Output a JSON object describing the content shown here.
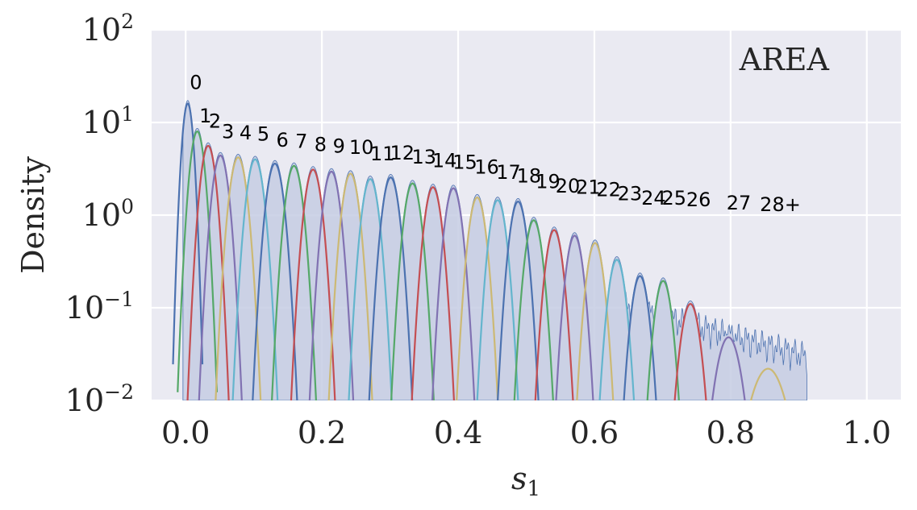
{
  "chart_data": {
    "type": "line",
    "title": "",
    "xlabel_base": "s",
    "xlabel_sub": "1",
    "ylabel": "Density",
    "annotation": "AREA",
    "xlim": [
      -0.05,
      1.05
    ],
    "ylim": [
      0.01,
      100
    ],
    "yscale": "log",
    "grid": true,
    "background": "#eaeaf2",
    "x_ticks": [
      "0.0",
      "0.2",
      "0.4",
      "0.6",
      "0.8",
      "1.0"
    ],
    "x_tick_values": [
      0,
      0.2,
      0.4,
      0.6,
      0.8,
      1.0
    ],
    "y_ticks": [
      {
        "value": 100,
        "base": "10",
        "exp": "2"
      },
      {
        "value": 10,
        "base": "10",
        "exp": "1"
      },
      {
        "value": 1,
        "base": "10",
        "exp": "0"
      },
      {
        "value": 0.1,
        "base": "10",
        "exp": "−1"
      },
      {
        "value": 0.01,
        "base": "10",
        "exp": "−2"
      }
    ],
    "colors": [
      "#4c72b0",
      "#55a868",
      "#c44e52",
      "#8172b2",
      "#ccb974",
      "#64b5cd"
    ],
    "histogram": {
      "color": "#4c72b0",
      "fill": "#c6cde3"
    },
    "peaks": [
      {
        "label": "0",
        "center": 0.003,
        "peak": 16.0,
        "width": 0.006,
        "label_x": 0.015,
        "label_y": 23
      },
      {
        "label": "1",
        "center": 0.017,
        "peak": 8.0,
        "width": 0.008,
        "label_x": 0.029,
        "label_y": 10
      },
      {
        "label": "2",
        "center": 0.033,
        "peak": 5.6,
        "width": 0.0085,
        "label_x": 0.043,
        "label_y": 8.8
      },
      {
        "label": "3",
        "center": 0.051,
        "peak": 4.4,
        "width": 0.009,
        "label_x": 0.062,
        "label_y": 6.8
      },
      {
        "label": "4",
        "center": 0.077,
        "peak": 4.2,
        "width": 0.0095,
        "label_x": 0.088,
        "label_y": 6.6
      },
      {
        "label": "5",
        "center": 0.102,
        "peak": 4.0,
        "width": 0.0095,
        "label_x": 0.114,
        "label_y": 6.4
      },
      {
        "label": "6",
        "center": 0.131,
        "peak": 3.6,
        "width": 0.0095,
        "label_x": 0.142,
        "label_y": 5.5
      },
      {
        "label": "7",
        "center": 0.159,
        "peak": 3.4,
        "width": 0.0095,
        "label_x": 0.17,
        "label_y": 5.3
      },
      {
        "label": "8",
        "center": 0.187,
        "peak": 3.1,
        "width": 0.0095,
        "label_x": 0.198,
        "label_y": 4.9
      },
      {
        "label": "9",
        "center": 0.214,
        "peak": 2.95,
        "width": 0.0095,
        "label_x": 0.225,
        "label_y": 4.7
      },
      {
        "label": "10",
        "center": 0.242,
        "peak": 2.8,
        "width": 0.0095,
        "label_x": 0.258,
        "label_y": 4.6
      },
      {
        "label": "11",
        "center": 0.271,
        "peak": 2.45,
        "width": 0.0095,
        "label_x": 0.289,
        "label_y": 3.9
      },
      {
        "label": "12",
        "center": 0.301,
        "peak": 2.55,
        "width": 0.0095,
        "label_x": 0.318,
        "label_y": 4.0
      },
      {
        "label": "13",
        "center": 0.333,
        "peak": 2.2,
        "width": 0.0095,
        "label_x": 0.35,
        "label_y": 3.6
      },
      {
        "label": "14",
        "center": 0.363,
        "peak": 2.0,
        "width": 0.0095,
        "label_x": 0.38,
        "label_y": 3.3
      },
      {
        "label": "15",
        "center": 0.393,
        "peak": 1.95,
        "width": 0.0095,
        "label_x": 0.41,
        "label_y": 3.15
      },
      {
        "label": "16",
        "center": 0.428,
        "peak": 1.55,
        "width": 0.0095,
        "label_x": 0.442,
        "label_y": 2.8
      },
      {
        "label": "17",
        "center": 0.458,
        "peak": 1.45,
        "width": 0.0095,
        "label_x": 0.474,
        "label_y": 2.45
      },
      {
        "label": "18",
        "center": 0.488,
        "peak": 1.4,
        "width": 0.0095,
        "label_x": 0.504,
        "label_y": 2.25
      },
      {
        "label": "19",
        "center": 0.511,
        "peak": 0.88,
        "width": 0.0095,
        "label_x": 0.532,
        "label_y": 1.95
      },
      {
        "label": "20",
        "center": 0.541,
        "peak": 0.69,
        "width": 0.0095,
        "label_x": 0.561,
        "label_y": 1.75
      },
      {
        "label": "21",
        "center": 0.571,
        "peak": 0.6,
        "width": 0.0095,
        "label_x": 0.591,
        "label_y": 1.7
      },
      {
        "label": "22",
        "center": 0.601,
        "peak": 0.5,
        "width": 0.0095,
        "label_x": 0.621,
        "label_y": 1.6
      },
      {
        "label": "23",
        "center": 0.633,
        "peak": 0.33,
        "width": 0.0095,
        "label_x": 0.652,
        "label_y": 1.45
      },
      {
        "label": "24",
        "center": 0.667,
        "peak": 0.22,
        "width": 0.0095,
        "label_x": 0.687,
        "label_y": 1.3
      },
      {
        "label": "25",
        "center": 0.701,
        "peak": 0.195,
        "width": 0.0095,
        "label_x": 0.717,
        "label_y": 1.3
      },
      {
        "label": "26",
        "center": 0.741,
        "peak": 0.11,
        "width": 0.0105,
        "label_x": 0.753,
        "label_y": 1.25
      },
      {
        "label": "27",
        "center": 0.797,
        "peak": 0.048,
        "width": 0.0135,
        "label_x": 0.812,
        "label_y": 1.15
      },
      {
        "label": "28+",
        "center": 0.855,
        "peak": 0.022,
        "width": 0.02,
        "label_x": 0.873,
        "label_y": 1.1
      }
    ]
  }
}
